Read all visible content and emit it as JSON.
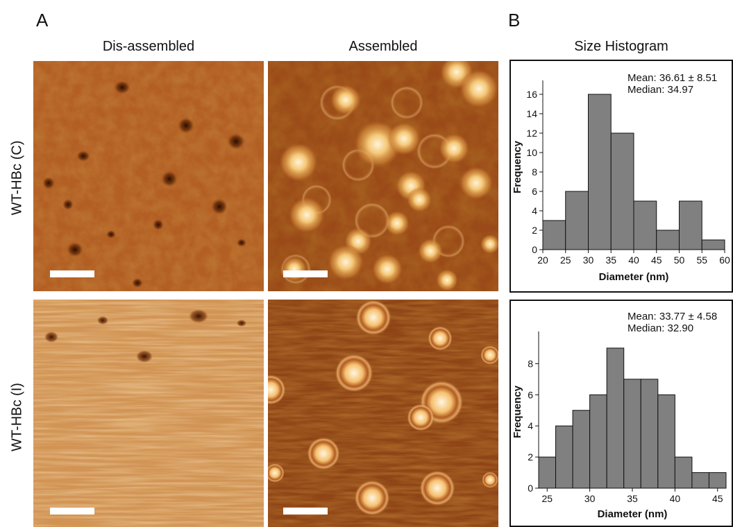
{
  "figure": {
    "panel_a_label": "A",
    "panel_b_label": "B",
    "col_titles": [
      "Dis-assembled",
      "Assembled",
      "Size Histogram"
    ],
    "row_labels": [
      "WT-HBc (C)",
      "WT-HBc (I)"
    ]
  },
  "chart_data": [
    {
      "type": "bar",
      "xlabel": "Diameter (nm)",
      "ylabel": "Frequency",
      "bin_edges": [
        20,
        25,
        30,
        35,
        40,
        45,
        50,
        55,
        60
      ],
      "values": [
        3,
        6,
        16,
        12,
        5,
        2,
        5,
        1
      ],
      "xlim": [
        20,
        60
      ],
      "ylim": [
        0,
        17
      ],
      "xticks": [
        20,
        25,
        30,
        35,
        40,
        45,
        50,
        55,
        60
      ],
      "yticks": [
        0,
        2,
        4,
        6,
        8,
        10,
        12,
        14,
        16
      ],
      "stats": [
        "Mean: 36.61 ± 8.51",
        "Median: 34.97"
      ],
      "bar_color": "#808080"
    },
    {
      "type": "bar",
      "xlabel": "Diameter (nm)",
      "ylabel": "Frequency",
      "bin_edges": [
        24,
        26,
        28,
        30,
        32,
        34,
        36,
        38,
        40,
        42,
        44,
        46
      ],
      "values": [
        2,
        4,
        5,
        6,
        9,
        7,
        7,
        6,
        2,
        1,
        1
      ],
      "xlim": [
        24,
        46
      ],
      "ylim": [
        0,
        9.8
      ],
      "xticks": [
        25,
        30,
        35,
        40,
        45
      ],
      "yticks": [
        0,
        2,
        4,
        6,
        8
      ],
      "stats": [
        "Mean: 33.77 ± 4.58",
        "Median: 32.90"
      ],
      "bar_color": "#808080"
    }
  ]
}
